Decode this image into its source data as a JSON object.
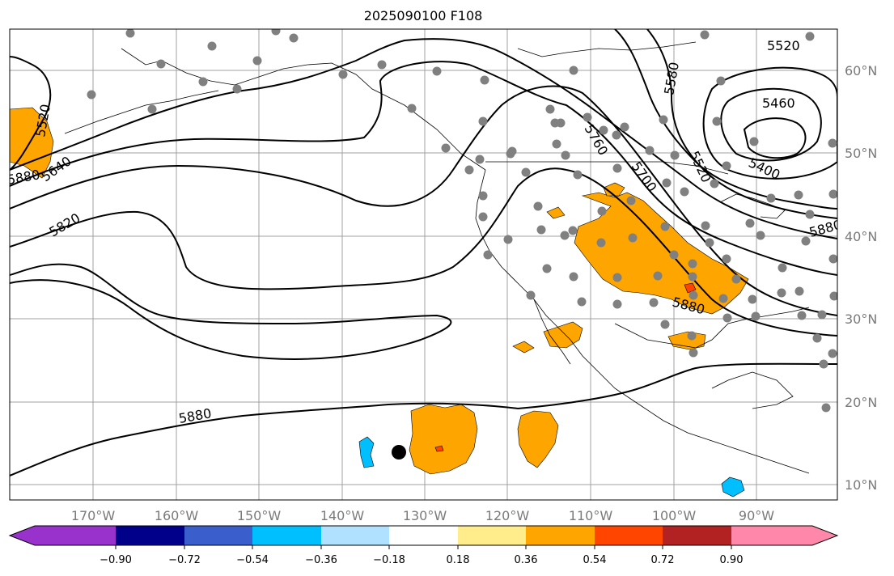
{
  "title": "2025090100 F108",
  "lon_labels": [
    "170°W",
    "160°W",
    "150°W",
    "140°W",
    "130°W",
    "120°W",
    "110°W",
    "100°W",
    "90°W"
  ],
  "lat_labels": [
    "60°N",
    "50°N",
    "40°N",
    "30°N",
    "20°N",
    "10°N"
  ],
  "contour_labels": [
    "5520",
    "5460",
    "5580",
    "5400",
    "5520",
    "5760",
    "5700",
    "5520",
    "5640",
    "5820",
    "5880",
    "5880",
    "5880",
    "5880"
  ],
  "colorbar": {
    "ticks": [
      "−0.90",
      "−0.72",
      "−0.54",
      "−0.36",
      "−0.18",
      "0.18",
      "0.36",
      "0.54",
      "0.72",
      "0.90"
    ],
    "colors": [
      "#9932cc",
      "#00008b",
      "#3a5fcd",
      "#00bfff",
      "#b0e2ff",
      "#ffffff",
      "#ffec8b",
      "#ffa500",
      "#ff4500",
      "#b22222",
      "#ff88aa",
      "#ff88aa"
    ]
  },
  "colors": {
    "anomaly_positive": "#ffa500",
    "anomaly_strong": "#ff4500",
    "anomaly_negative": "#00bfff",
    "station_marker": "#808080",
    "storm_marker": "#000000"
  }
}
